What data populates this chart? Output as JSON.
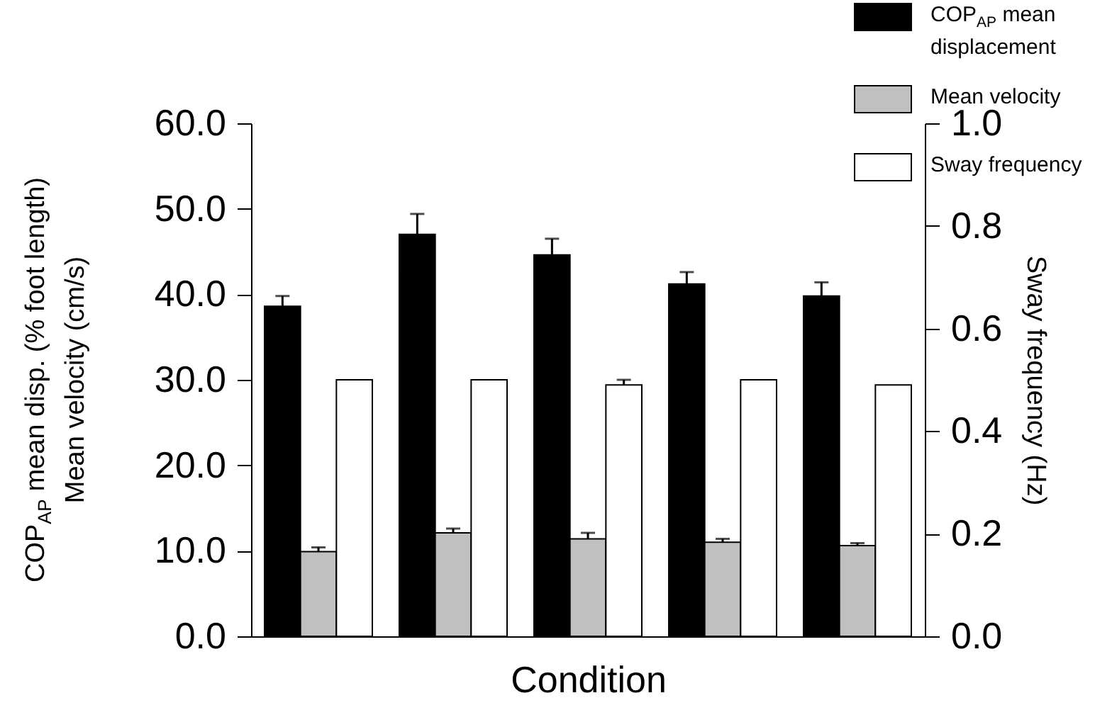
{
  "chart_data": {
    "type": "bar",
    "xlabel": "Condition",
    "ylabel": "COP$_{AP}$ mean disp. (% foot length)\nMean velocity (cm/s)",
    "y2label": "Sway frequency (Hz)",
    "categories": [
      null,
      null,
      null,
      null,
      null
    ],
    "series": [
      {
        "name": "COP$_{AP}$ mean displacement",
        "color": "#000000",
        "values": [
          38.6,
          47.0,
          44.6,
          41.2,
          39.8
        ],
        "errors": [
          1.2,
          2.4,
          1.9,
          1.4,
          1.6
        ]
      },
      {
        "name": "Mean velocity",
        "color": "#c0c0c0",
        "values": [
          9.9,
          12.1,
          11.4,
          11.0,
          10.6
        ],
        "errors": [
          0.5,
          0.5,
          0.7,
          0.4,
          0.3
        ]
      },
      {
        "name": "Sway frequency",
        "color": "#ffffff",
        "axis": "y2",
        "values": [
          0.5,
          0.5,
          0.49,
          0.5,
          0.49
        ],
        "errors": [
          null,
          null,
          0.01,
          null,
          null
        ]
      }
    ],
    "ylim": [
      0,
      60
    ],
    "yticks": [
      {
        "value": 0,
        "label": "0.0"
      },
      {
        "value": 10,
        "label": "10.0"
      },
      {
        "value": 20,
        "label": "20.0"
      },
      {
        "value": 30,
        "label": "30.0"
      },
      {
        "value": 40,
        "label": "40.0"
      },
      {
        "value": 50,
        "label": "50.0"
      },
      {
        "value": 60,
        "label": "60.0"
      }
    ],
    "y2lim": [
      0,
      1
    ],
    "y2ticks": [
      {
        "value": 0,
        "label": "0.0"
      },
      {
        "value": 0.2,
        "label": "0.2"
      },
      {
        "value": 0.4,
        "label": "0.4"
      },
      {
        "value": 0.6,
        "label": "0.6"
      },
      {
        "value": 0.8,
        "label": "0.8"
      },
      {
        "value": 1,
        "label": "1.0"
      }
    ],
    "legend": "top right",
    "grid": false
  }
}
